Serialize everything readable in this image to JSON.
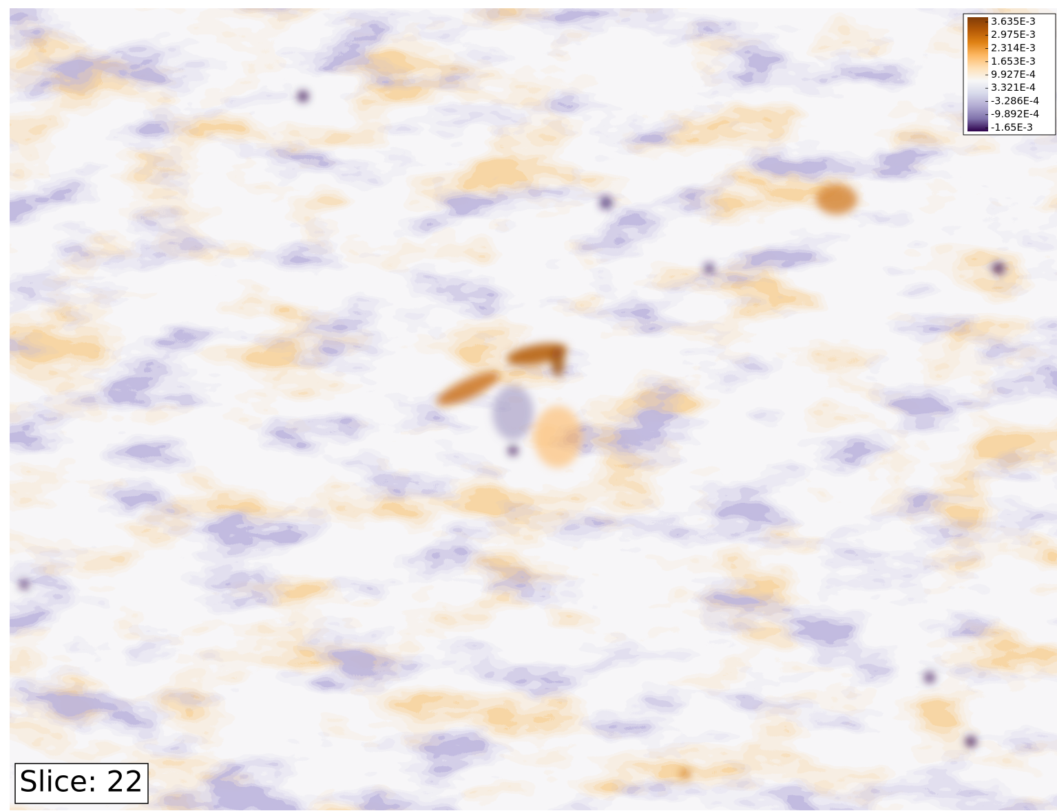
{
  "chart_data": {
    "type": "contour",
    "annotation": "Slice: 22",
    "colorbar": {
      "ticks": [
        {
          "value": 0.003635,
          "label": "3.635E-3"
        },
        {
          "value": 0.002975,
          "label": "2.975E-3"
        },
        {
          "value": 0.002314,
          "label": "2.314E-3"
        },
        {
          "value": 0.001653,
          "label": "1.653E-3"
        },
        {
          "value": 0.0009927,
          "label": "9.927E-4"
        },
        {
          "value": 0.0003321,
          "label": "3.321E-4"
        },
        {
          "value": -0.0003286,
          "label": "-3.286E-4"
        },
        {
          "value": -0.0009892,
          "label": "-9.892E-4"
        },
        {
          "value": -0.00165,
          "label": "-1.65E-3"
        }
      ],
      "lim": [
        -0.00165,
        0.003635
      ],
      "colors": [
        "#7f3b08",
        "#b35806",
        "#e08214",
        "#fdb863",
        "#fee0b6",
        "#f7f7f7",
        "#d8daeb",
        "#b2abd2",
        "#8073ac",
        "#2d004b"
      ]
    }
  }
}
